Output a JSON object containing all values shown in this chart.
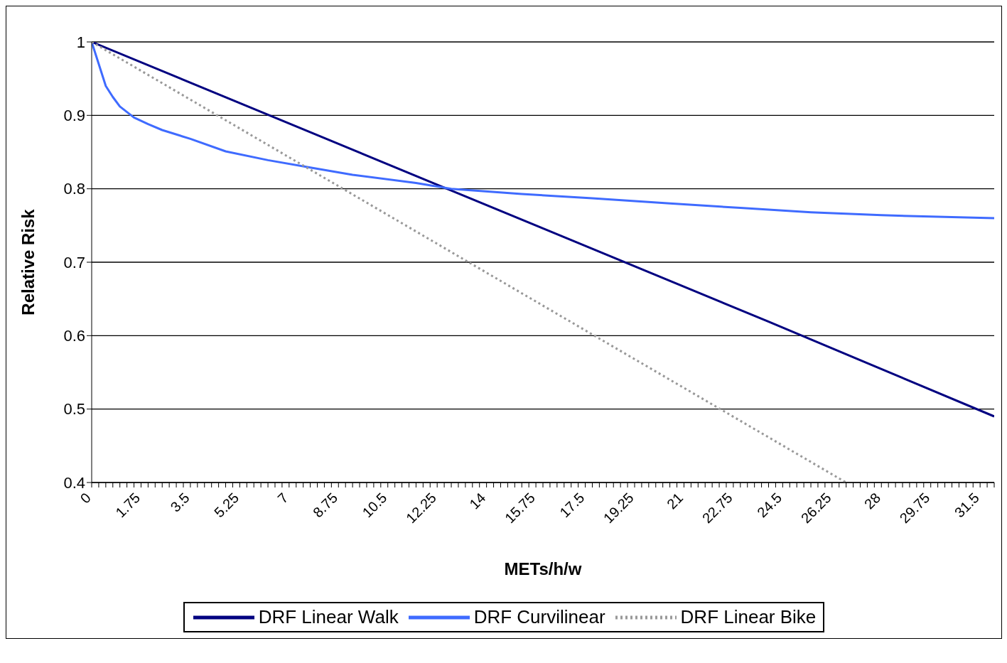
{
  "chart_data": {
    "type": "line",
    "xlabel": "METs/h/w",
    "ylabel": "Relative Risk",
    "xlim": [
      0,
      32
    ],
    "ylim": [
      0.4,
      1
    ],
    "yticks": [
      0.4,
      0.5,
      0.6,
      0.7,
      0.8,
      0.9,
      1
    ],
    "xticks": [
      0,
      {
        "value": 0.25,
        "label": null
      },
      {
        "value": 0.5,
        "label": null
      },
      {
        "value": 0.75,
        "label": null
      },
      {
        "value": 1,
        "label": null
      },
      {
        "value": 1.25,
        "label": null
      },
      {
        "value": 1.5,
        "label": null
      },
      1.75,
      {
        "value": 2,
        "label": null
      },
      {
        "value": 2.25,
        "label": null
      },
      {
        "value": 2.5,
        "label": null
      },
      {
        "value": 2.75,
        "label": null
      },
      {
        "value": 3,
        "label": null
      },
      {
        "value": 3.25,
        "label": null
      },
      3.5,
      {
        "value": 3.75,
        "label": null
      },
      {
        "value": 4,
        "label": null
      },
      {
        "value": 4.25,
        "label": null
      },
      {
        "value": 4.5,
        "label": null
      },
      {
        "value": 4.75,
        "label": null
      },
      {
        "value": 5,
        "label": null
      },
      5.25,
      {
        "value": 5.5,
        "label": null
      },
      {
        "value": 5.75,
        "label": null
      },
      {
        "value": 6,
        "label": null
      },
      {
        "value": 6.25,
        "label": null
      },
      {
        "value": 6.5,
        "label": null
      },
      {
        "value": 6.75,
        "label": null
      },
      7,
      {
        "value": 7.25,
        "label": null
      },
      {
        "value": 7.5,
        "label": null
      },
      {
        "value": 7.75,
        "label": null
      },
      {
        "value": 8,
        "label": null
      },
      {
        "value": 8.25,
        "label": null
      },
      {
        "value": 8.5,
        "label": null
      },
      8.75,
      {
        "value": 9,
        "label": null
      },
      {
        "value": 9.25,
        "label": null
      },
      {
        "value": 9.5,
        "label": null
      },
      {
        "value": 9.75,
        "label": null
      },
      {
        "value": 10,
        "label": null
      },
      {
        "value": 10.25,
        "label": null
      },
      10.5,
      {
        "value": 10.75,
        "label": null
      },
      {
        "value": 11,
        "label": null
      },
      {
        "value": 11.25,
        "label": null
      },
      {
        "value": 11.5,
        "label": null
      },
      {
        "value": 11.75,
        "label": null
      },
      {
        "value": 12,
        "label": null
      },
      12.25,
      {
        "value": 12.5,
        "label": null
      },
      {
        "value": 12.75,
        "label": null
      },
      {
        "value": 13,
        "label": null
      },
      {
        "value": 13.25,
        "label": null
      },
      {
        "value": 13.5,
        "label": null
      },
      {
        "value": 13.75,
        "label": null
      },
      14,
      {
        "value": 14.25,
        "label": null
      },
      {
        "value": 14.5,
        "label": null
      },
      {
        "value": 14.75,
        "label": null
      },
      {
        "value": 15,
        "label": null
      },
      {
        "value": 15.25,
        "label": null
      },
      {
        "value": 15.5,
        "label": null
      },
      15.75,
      {
        "value": 16,
        "label": null
      },
      {
        "value": 16.25,
        "label": null
      },
      {
        "value": 16.5,
        "label": null
      },
      {
        "value": 16.75,
        "label": null
      },
      {
        "value": 17,
        "label": null
      },
      {
        "value": 17.25,
        "label": null
      },
      17.5,
      {
        "value": 17.75,
        "label": null
      },
      {
        "value": 18,
        "label": null
      },
      {
        "value": 18.25,
        "label": null
      },
      {
        "value": 18.5,
        "label": null
      },
      {
        "value": 18.75,
        "label": null
      },
      {
        "value": 19,
        "label": null
      },
      19.25,
      {
        "value": 19.5,
        "label": null
      },
      {
        "value": 19.75,
        "label": null
      },
      {
        "value": 20,
        "label": null
      },
      {
        "value": 20.25,
        "label": null
      },
      {
        "value": 20.5,
        "label": null
      },
      {
        "value": 20.75,
        "label": null
      },
      21,
      {
        "value": 21.25,
        "label": null
      },
      {
        "value": 21.5,
        "label": null
      },
      {
        "value": 21.75,
        "label": null
      },
      {
        "value": 22,
        "label": null
      },
      {
        "value": 22.25,
        "label": null
      },
      {
        "value": 22.5,
        "label": null
      },
      22.75,
      {
        "value": 23,
        "label": null
      },
      {
        "value": 23.25,
        "label": null
      },
      {
        "value": 23.5,
        "label": null
      },
      {
        "value": 23.75,
        "label": null
      },
      {
        "value": 24,
        "label": null
      },
      {
        "value": 24.25,
        "label": null
      },
      24.5,
      {
        "value": 24.75,
        "label": null
      },
      {
        "value": 25,
        "label": null
      },
      {
        "value": 25.25,
        "label": null
      },
      {
        "value": 25.5,
        "label": null
      },
      {
        "value": 25.75,
        "label": null
      },
      {
        "value": 26,
        "label": null
      },
      26.25,
      {
        "value": 26.5,
        "label": null
      },
      {
        "value": 26.75,
        "label": null
      },
      {
        "value": 27,
        "label": null
      },
      {
        "value": 27.25,
        "label": null
      },
      {
        "value": 27.5,
        "label": null
      },
      {
        "value": 27.75,
        "label": null
      },
      28,
      {
        "value": 28.25,
        "label": null
      },
      {
        "value": 28.5,
        "label": null
      },
      {
        "value": 28.75,
        "label": null
      },
      {
        "value": 29,
        "label": null
      },
      {
        "value": 29.25,
        "label": null
      },
      {
        "value": 29.5,
        "label": null
      },
      29.75,
      {
        "value": 30,
        "label": null
      },
      {
        "value": 30.25,
        "label": null
      },
      {
        "value": 30.5,
        "label": null
      },
      {
        "value": 30.75,
        "label": null
      },
      {
        "value": 31,
        "label": null
      },
      {
        "value": 31.25,
        "label": null
      },
      31.5,
      {
        "value": 31.75,
        "label": null
      },
      {
        "value": 32,
        "label": null
      }
    ],
    "grid": "y",
    "legend": "bottom",
    "series": [
      {
        "name": "DRF Linear Walk",
        "color": "#000080",
        "line_style": "solid",
        "x": [
          0,
          8,
          16,
          24,
          32
        ],
        "values": [
          1,
          0.873,
          0.746,
          0.619,
          0.49
        ]
      },
      {
        "name": "DRF Curvilinear",
        "color": "#3f6bff",
        "line_style": "solid",
        "x": [
          0,
          0.25,
          0.5,
          0.75,
          1,
          1.5,
          2,
          2.5,
          3.5,
          4.75,
          6.25,
          7.75,
          9.25,
          11.5,
          12.75,
          15.25,
          17.75,
          20.5,
          23,
          25.5,
          28,
          32
        ],
        "values": [
          1,
          0.97,
          0.94,
          0.925,
          0.912,
          0.897,
          0.888,
          0.88,
          0.868,
          0.851,
          0.839,
          0.829,
          0.819,
          0.808,
          0.8,
          0.793,
          0.787,
          0.78,
          0.774,
          0.768,
          0.764,
          0.76
        ]
      },
      {
        "name": "DRF Linear Bike",
        "color": "#999999",
        "line_style": "dotted",
        "x": [
          0,
          9,
          18,
          26.75
        ],
        "values": [
          1,
          0.798,
          0.596,
          0.4
        ]
      }
    ]
  }
}
